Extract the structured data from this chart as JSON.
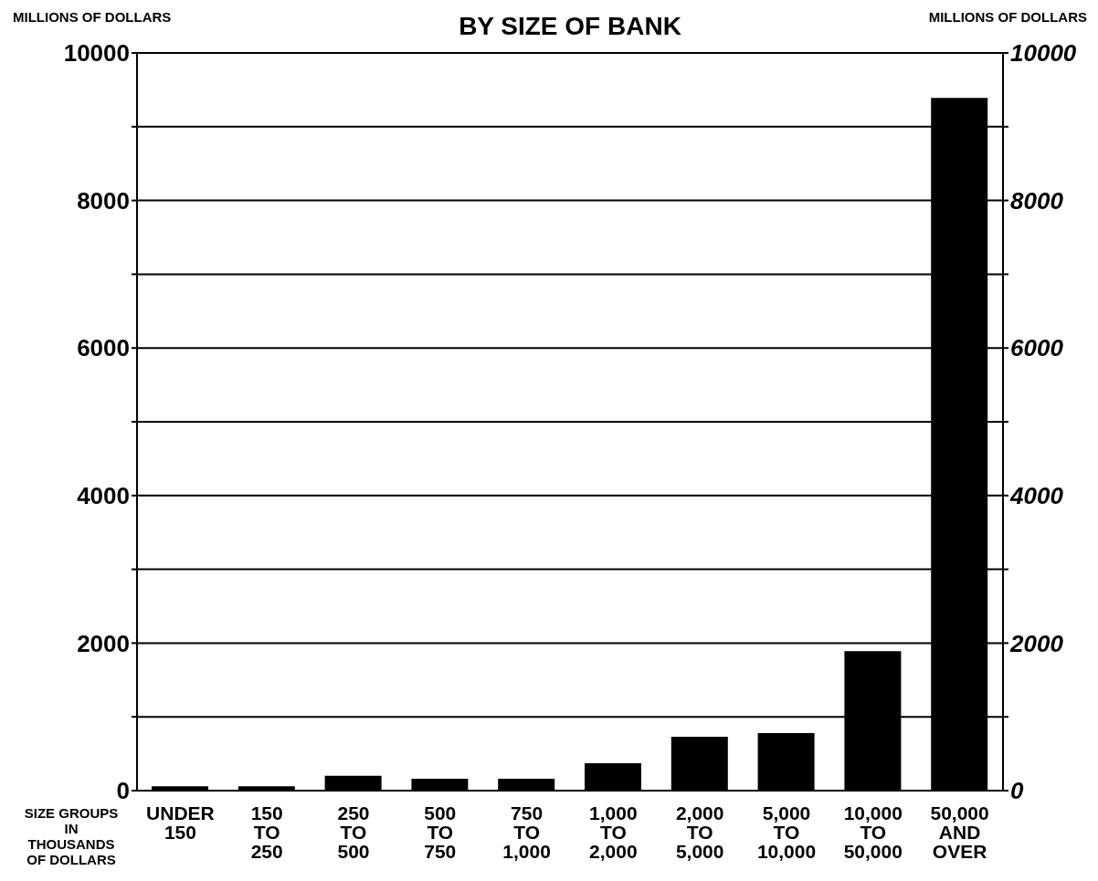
{
  "chart_data": {
    "type": "bar",
    "title": "BY SIZE OF BANK",
    "ylabel": "MILLIONS OF DOLLARS",
    "y2label": "MILLIONS OF DOLLARS",
    "xlabel": "SIZE GROUPS\nIN\nTHOUSANDS\nOF DOLLARS",
    "categories": [
      "UNDER\n150",
      "150\nTO\n250",
      "250\nTO\n500",
      "500\nTO\n750",
      "750\nTO\n1,000",
      "1,000\nTO\n2,000",
      "2,000\nTO\n5,000",
      "5,000\nTO\n10,000",
      "10,000\nTO\n50,000",
      "50,000\nAND\nOVER"
    ],
    "values": [
      60,
      60,
      200,
      160,
      160,
      370,
      730,
      780,
      1890,
      9390
    ],
    "color": "#000000",
    "ylim": [
      0,
      10000
    ],
    "yticks": [
      0,
      {
        "value": 1000,
        "label": null
      },
      2000,
      {
        "value": 3000,
        "label": null
      },
      4000,
      {
        "value": 5000,
        "label": null
      },
      6000,
      {
        "value": 7000,
        "label": null
      },
      8000,
      {
        "value": 9000,
        "label": null
      },
      10000
    ],
    "y2lim": [
      0,
      10000
    ],
    "y2ticks": [
      0,
      {
        "value": 1000,
        "label": null
      },
      2000,
      {
        "value": 3000,
        "label": null
      },
      4000,
      {
        "value": 5000,
        "label": null
      },
      6000,
      {
        "value": 7000,
        "label": null
      },
      8000,
      {
        "value": 9000,
        "label": null
      },
      10000
    ],
    "grid": "y",
    "legend": false
  }
}
